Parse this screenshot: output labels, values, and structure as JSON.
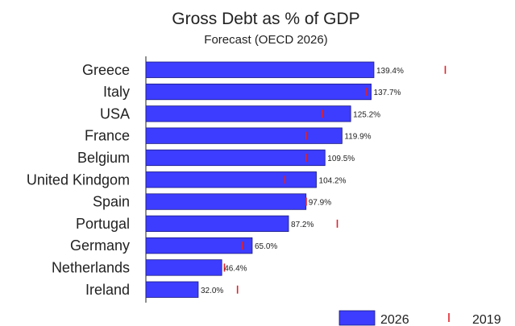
{
  "chart_data": {
    "type": "bar",
    "orientation": "horizontal",
    "title": "Gross Debt as % of GDP",
    "subtitle": "Forecast (OECD 2026)",
    "categories": [
      "Greece",
      "Italy",
      "USA",
      "France",
      "Belgium",
      "United Kindgom",
      "Spain",
      "Portugal",
      "Germany",
      "Netherlands",
      "Ireland"
    ],
    "series": [
      {
        "name": "2026",
        "type": "bar",
        "color": "#3d3dff",
        "values": [
          139.4,
          137.7,
          125.2,
          119.9,
          109.5,
          104.2,
          97.9,
          87.2,
          65.0,
          46.4,
          32.0
        ],
        "labels": [
          "139.4%",
          "137.7%",
          "125.2%",
          "119.9%",
          "109.5%",
          "104.2%",
          "97.9%",
          "87.2%",
          "65.0%",
          "46.4%",
          "32.0%"
        ]
      },
      {
        "name": "2019",
        "type": "marker",
        "color": "#e0202a",
        "values": [
          183,
          135,
          108,
          98,
          98,
          85,
          98,
          117,
          59,
          48,
          56
        ]
      }
    ],
    "xlim": [
      0,
      190
    ],
    "grid": false,
    "legend_position": "bottom-right"
  }
}
